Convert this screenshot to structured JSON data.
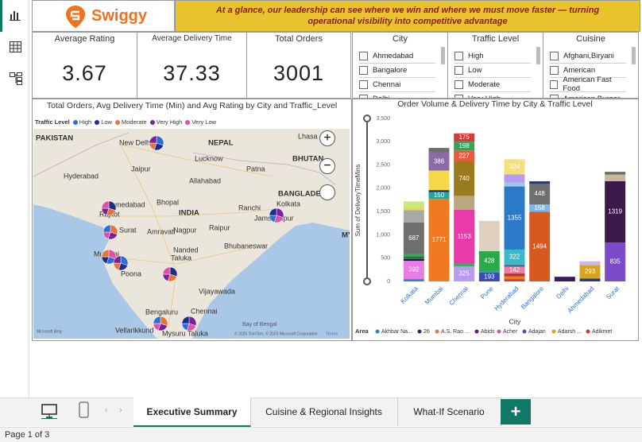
{
  "header": {
    "brand": "Swiggy",
    "banner": "At a glance, our leadership can see where we win and where we must move faster — turning operational visibility into competitive advantage"
  },
  "kpis": [
    {
      "label": "Average Rating",
      "value": "3.67"
    },
    {
      "label": "Average Delivery Time",
      "value": "37.33"
    },
    {
      "label": "Total Orders",
      "value": "3001"
    }
  ],
  "slicers": [
    {
      "title": "City",
      "items": [
        "Ahmedabad",
        "Bangalore",
        "Chennai",
        "Delhi"
      ]
    },
    {
      "title": "Traffic Level",
      "items": [
        "High",
        "Low",
        "Moderate",
        "Very High"
      ]
    },
    {
      "title": "Cuisine",
      "items": [
        "Afghani,Biryani",
        "American",
        "American Fast Food",
        "American,Burger"
      ]
    }
  ],
  "map": {
    "title": "Total Orders, Avg Delivery Time (Min) and Avg Rating by City and Traffic_Level",
    "legend_title": "Traffic Level",
    "legend": [
      {
        "name": "High",
        "color": "#2b6fd6"
      },
      {
        "name": "Low",
        "color": "#1a2e8a"
      },
      {
        "name": "Moderate",
        "color": "#e8743b"
      },
      {
        "name": "Very High",
        "color": "#7a1fa0"
      },
      {
        "name": "Very Low",
        "color": "#e04fa8"
      }
    ],
    "places": [
      "PAKISTAN",
      "New Delhi",
      "NEPAL",
      "Lhasa",
      "BHUTAN",
      "Hyderabad",
      "Jaipur",
      "Lucknow",
      "Allahabad",
      "Patna",
      "Bhopal",
      "INDIA",
      "Ahmedabad",
      "Ranchi",
      "Jamshedpur",
      "BANGLADESH",
      "Kolkata",
      "Rajkot",
      "Surat",
      "Amravati",
      "Nagpur",
      "Raipur",
      "Mumbai",
      "Poona",
      "Nanded",
      "Bhubaneswar",
      "Taluka",
      "Vijayawada",
      "Chennai",
      "Bengaluru",
      "Mysuru Taluka",
      "Vellarikkund",
      "Bay of Bengal",
      "MY"
    ],
    "credits": [
      "Microsoft Bing",
      "© 2025 TomTom, © 2025 Microsoft Corporation",
      "Terms"
    ]
  },
  "chart_data": {
    "type": "bar",
    "title": "Order Volume & Delivery Time by City & Traffic Level",
    "x_label": "City",
    "y_label": "Sum of DeliveryTimeMins",
    "categories": [
      "Kolkata",
      "Mumbai",
      "Chennai",
      "Pune",
      "Hyderabad",
      "Bangalore",
      "Delhi",
      "Ahmedabad",
      "Surat"
    ],
    "ylim": [
      0,
      3500
    ],
    "yticks": [
      0,
      500,
      {
        "value": 1000,
        "label": "1,000"
      },
      {
        "value": 1500,
        "label": "1,500"
      },
      {
        "value": 2000,
        "label": "2,000"
      },
      {
        "value": 2500,
        "label": "2,500"
      },
      {
        "value": 3000,
        "label": "3,000"
      },
      {
        "value": 3500,
        "label": "3,500"
      }
    ],
    "grid": false,
    "bars": [
      {
        "segments": [
          {
            "value": 50,
            "color": "#1f8bd6"
          },
          {
            "value": 392,
            "color": "#e87de8",
            "labeled": true
          },
          {
            "value": 40,
            "color": "#1a1a4e"
          },
          {
            "value": 60,
            "color": "#1f7a3a"
          },
          {
            "value": 40,
            "color": "#3aaa5a"
          },
          {
            "value": 687,
            "color": "#6e6e6e",
            "labeled": true
          },
          {
            "value": 260,
            "color": "#a8a8a8"
          },
          {
            "value": 60,
            "color": "#e8d84a"
          },
          {
            "value": 130,
            "color": "#c9e87a"
          }
        ]
      },
      {
        "segments": [
          {
            "value": 1771,
            "color": "#f07a1f",
            "labeled": true
          },
          {
            "value": 150,
            "color": "#1fa6a0",
            "labeled": true
          },
          {
            "value": 40,
            "color": "#1a2e6a"
          },
          {
            "value": 420,
            "color": "#f5d84a"
          },
          {
            "value": 386,
            "color": "#8a6aa8",
            "labeled": true
          },
          {
            "value": 100,
            "color": "#6e6e6e"
          }
        ]
      },
      {
        "segments": [
          {
            "value": 325,
            "color": "#b89af0",
            "labeled": true
          },
          {
            "value": 60,
            "color": "#3aaa5a"
          },
          {
            "value": 1153,
            "color": "#e83aa8",
            "labeled": true
          },
          {
            "value": 300,
            "color": "#b8a880"
          },
          {
            "value": 740,
            "color": "#9a7a1f",
            "labeled": true
          },
          {
            "value": 227,
            "color": "#e85a3a",
            "labeled": true
          },
          {
            "value": 198,
            "color": "#3aa05a",
            "labeled": true
          },
          {
            "value": 175,
            "color": "#d63a3a",
            "labeled": true
          }
        ]
      },
      {
        "segments": [
          {
            "value": 193,
            "color": "#3a4ab8",
            "labeled": true
          },
          {
            "value": 30,
            "color": "#1fa6a0"
          },
          {
            "value": 428,
            "color": "#2aa84a",
            "labeled": true
          },
          {
            "value": 650,
            "color": "#e0d0c0"
          }
        ]
      },
      {
        "segments": [
          {
            "value": 50,
            "color": "#d63a3a"
          },
          {
            "value": 60,
            "color": "#f07a1f"
          },
          {
            "value": 60,
            "color": "#a83a3a"
          },
          {
            "value": 142,
            "color": "#f07aa0",
            "labeled": true
          },
          {
            "value": 50,
            "color": "#5a6a8a"
          },
          {
            "value": 322,
            "color": "#3ab8c8",
            "labeled": true
          },
          {
            "value": 1355,
            "color": "#2a7ac8",
            "labeled": true
          },
          {
            "value": 80,
            "color": "#9ac8f0"
          },
          {
            "value": 180,
            "color": "#b89af0"
          },
          {
            "value": 324,
            "color": "#f5e07a",
            "labeled": true
          }
        ]
      },
      {
        "segments": [
          {
            "value": 1494,
            "color": "#d65a1f",
            "labeled": true
          },
          {
            "value": 158,
            "color": "#7ab8f0",
            "labeled": true
          },
          {
            "value": 448,
            "color": "#6e6e6e",
            "labeled": true
          },
          {
            "value": 50,
            "color": "#2a3a6a"
          }
        ]
      },
      {
        "segments": [
          {
            "value": 100,
            "color": "#3a1a5a"
          }
        ]
      },
      {
        "segments": [
          {
            "value": 60,
            "color": "#2a3a8a"
          },
          {
            "value": 293,
            "color": "#d6a51f",
            "labeled": true
          },
          {
            "value": 80,
            "color": "#c8b8e8"
          }
        ]
      },
      {
        "segments": [
          {
            "value": 835,
            "color": "#7a4ac8",
            "labeled": true
          },
          {
            "value": 1319,
            "color": "#3a1a4a",
            "labeled": true
          },
          {
            "value": 140,
            "color": "#c8b89a"
          },
          {
            "value": 60,
            "color": "#6e6e6e"
          }
        ]
      }
    ],
    "legend_title": "Area",
    "legend": [
      {
        "name": "Akhbar Na...",
        "color": "#1f8bd6"
      },
      {
        "name": "26",
        "color": "#1a2e8a"
      },
      {
        "name": "A.S. Rao ...",
        "color": "#e8743b"
      },
      {
        "name": "Abids",
        "color": "#5a1f8a"
      },
      {
        "name": "Acher",
        "color": "#e04fa8"
      },
      {
        "name": "Adajan",
        "color": "#6a3fc0"
      },
      {
        "name": "Adarsh ...",
        "color": "#d6a51f"
      },
      {
        "name": "Adikmet",
        "color": "#d63a3a"
      }
    ]
  },
  "tabs": [
    "Executive Summary",
    "Cuisine & Regional Insights",
    "What-If Scenario"
  ],
  "status": "Page 1 of 3"
}
